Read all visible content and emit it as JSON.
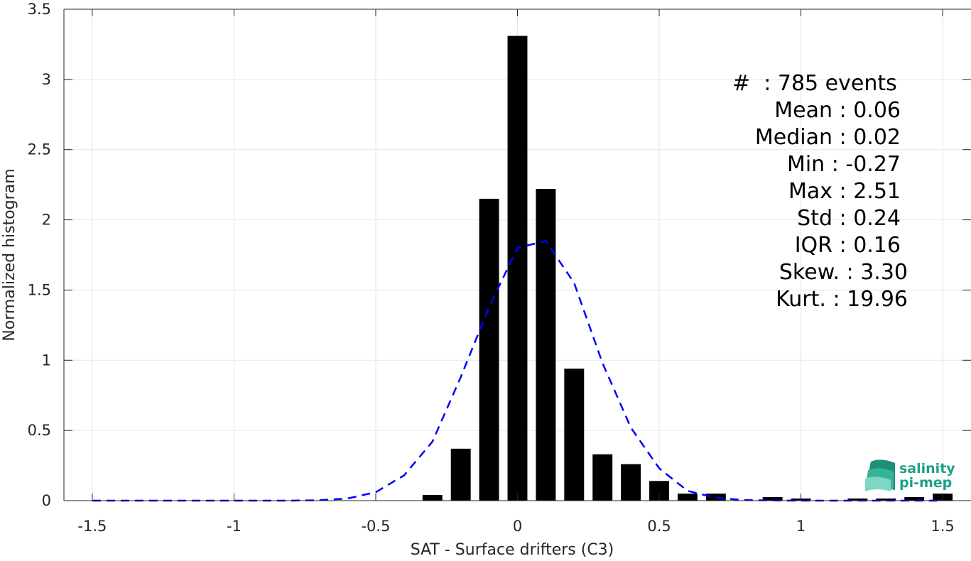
{
  "chart_data": {
    "type": "bar",
    "xlabel": "SAT - Surface drifters (C3)",
    "ylabel": "Normalized histogram",
    "xlim": [
      -1.6,
      1.6
    ],
    "ylim": [
      0,
      3.5
    ],
    "xticks": [
      -1.5,
      -1,
      -0.5,
      0,
      0.5,
      1,
      1.5
    ],
    "xtick_labels": [
      "-1.5",
      "-1",
      "-0.5",
      "0",
      "0.5",
      "1",
      "1.5"
    ],
    "yticks": [
      0,
      0.5,
      1,
      1.5,
      2,
      2.5,
      3,
      3.5
    ],
    "ytick_labels": [
      "0",
      "0.5",
      "1",
      "1.5",
      "2",
      "2.5",
      "3",
      "3.5"
    ],
    "grid": true,
    "bar_width": 0.07,
    "bars": {
      "x": [
        -0.3,
        -0.2,
        -0.1,
        0.0,
        0.1,
        0.2,
        0.3,
        0.4,
        0.5,
        0.6,
        0.7,
        0.9,
        1.0,
        1.2,
        1.3,
        1.4,
        1.5
      ],
      "values": [
        0.04,
        0.37,
        2.15,
        3.31,
        2.22,
        0.94,
        0.33,
        0.26,
        0.14,
        0.05,
        0.05,
        0.025,
        0.015,
        0.015,
        0.015,
        0.025,
        0.05
      ],
      "color": "#000000"
    },
    "curve": {
      "style": "dashed",
      "color": "#0000ff",
      "x": [
        -1.5,
        -1.4,
        -1.3,
        -1.2,
        -1.1,
        -1.0,
        -0.9,
        -0.8,
        -0.7,
        -0.6,
        -0.5,
        -0.4,
        -0.3,
        -0.2,
        -0.1,
        0.0,
        0.1,
        0.2,
        0.3,
        0.4,
        0.5,
        0.6,
        0.7,
        0.8,
        0.9,
        1.0,
        1.1,
        1.2,
        1.3,
        1.4,
        1.5
      ],
      "y": [
        0,
        0,
        0,
        0,
        0,
        0,
        0,
        0,
        0.003,
        0.015,
        0.06,
        0.18,
        0.42,
        0.88,
        1.38,
        1.8,
        1.85,
        1.55,
        0.98,
        0.52,
        0.23,
        0.07,
        0.02,
        0.004,
        0.001,
        0,
        0,
        0,
        0,
        0,
        0
      ]
    },
    "annotations": [
      "#  : 785 events",
      "Mean : 0.06",
      "Median : 0.02",
      "Min : -0.27",
      "Max : 2.51",
      "Std : 0.24",
      "IQR : 0.16",
      "Skew. : 3.30",
      "Kurt. : 19.96"
    ]
  },
  "logo": {
    "line1": "salinity",
    "line2": "pi-mep",
    "color": "#1aa188"
  }
}
